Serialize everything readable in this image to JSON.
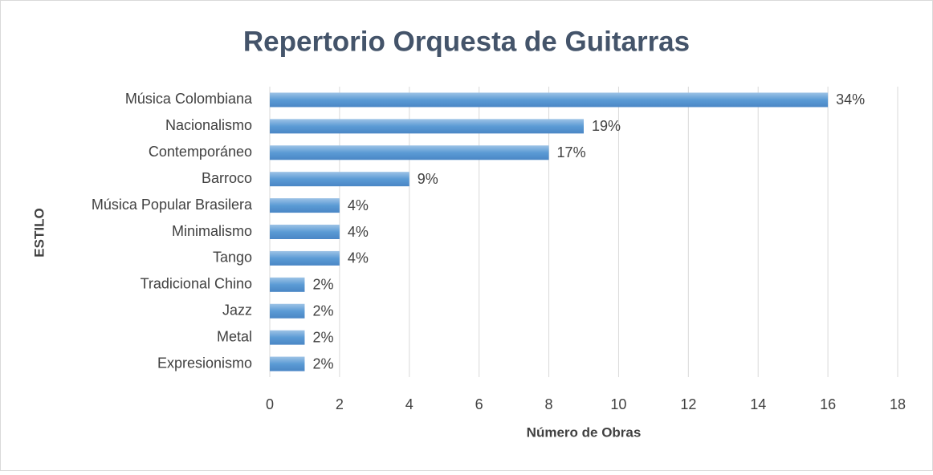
{
  "chart_data": {
    "type": "bar",
    "orientation": "horizontal",
    "title": "Repertorio Orquesta de Guitarras",
    "x_label": "Número de Obras",
    "y_label": "ESTILO",
    "categories": [
      "Música Colombiana",
      "Nacionalismo",
      "Contemporáneo",
      "Barroco",
      "Música Popular Brasilera",
      "Minimalismo",
      "Tango",
      "Tradicional Chino",
      "Jazz",
      "Metal",
      "Expresionismo"
    ],
    "values": [
      16,
      9,
      8,
      4,
      2,
      2,
      2,
      1,
      1,
      1,
      1
    ],
    "value_labels": [
      "34%",
      "19%",
      "17%",
      "9%",
      "4%",
      "4%",
      "4%",
      "2%",
      "2%",
      "2%",
      "2%"
    ],
    "color": "#5b9bd5",
    "xlim": [
      0,
      18
    ],
    "xticks": [
      0,
      2,
      4,
      6,
      8,
      10,
      12,
      14,
      16,
      18
    ],
    "grid": true
  }
}
